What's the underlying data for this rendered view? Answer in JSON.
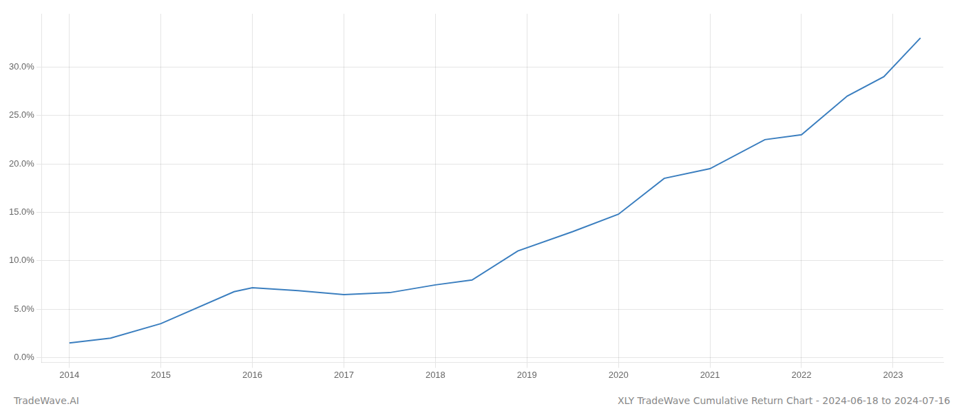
{
  "chart_data": {
    "type": "line",
    "title": "XLY TradeWave Cumulative Return Chart - 2024-06-18 to 2024-07-16",
    "annotations": [
      "TradeWave.AI"
    ],
    "x": [
      2014.0,
      2014.45,
      2015.0,
      2015.8,
      2016.0,
      2016.5,
      2017.0,
      2017.5,
      2018.0,
      2018.4,
      2018.9,
      2019.5,
      2020.0,
      2020.5,
      2021.0,
      2021.6,
      2022.0,
      2022.5,
      2022.9,
      2023.3
    ],
    "values": [
      1.5,
      2.0,
      3.5,
      6.8,
      7.2,
      6.9,
      6.5,
      6.7,
      7.5,
      8.0,
      11.0,
      13.0,
      14.8,
      18.5,
      19.5,
      22.5,
      23.0,
      27.0,
      29.0,
      33.0
    ],
    "color": "#3a7ebf",
    "xlim": [
      2013.7,
      2023.55
    ],
    "xticks": [
      2014,
      2015,
      2016,
      2017,
      2018,
      2019,
      2020,
      2021,
      2022,
      2023
    ],
    "ylim": [
      -0.5,
      35.5
    ],
    "yticks": [
      {
        "value": 0.0,
        "label": "0.0%"
      },
      {
        "value": 5.0,
        "label": "5.0%"
      },
      {
        "value": 10.0,
        "label": "10.0%"
      },
      {
        "value": 15.0,
        "label": "15.0%"
      },
      {
        "value": 20.0,
        "label": "20.0%"
      },
      {
        "value": 25.0,
        "label": "25.0%"
      },
      {
        "value": 30.0,
        "label": "30.0%"
      }
    ],
    "grid": true
  }
}
